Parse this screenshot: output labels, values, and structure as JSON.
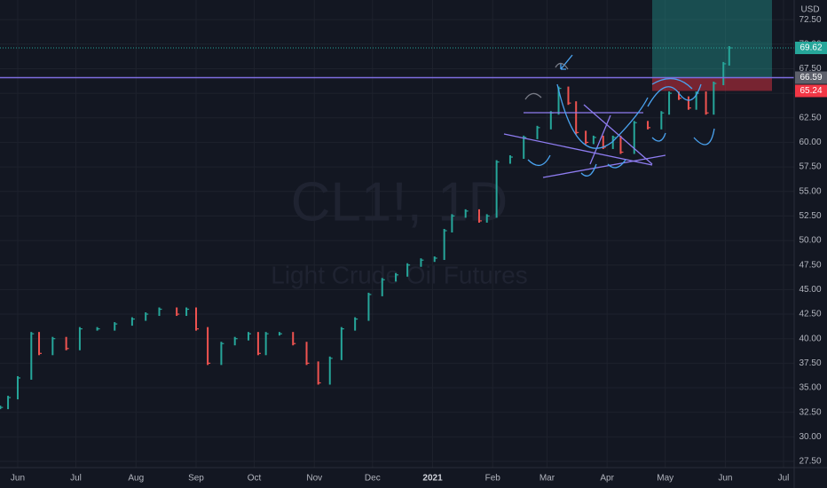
{
  "chart_data": {
    "type": "bar",
    "watermark_symbol": "CL1!, 1D",
    "watermark_name": "Light Crude Oil Futures",
    "currency": "USD",
    "up_color": "#26a69a",
    "down_color": "#ef5350",
    "x": [
      -9,
      -5,
      0,
      7,
      11,
      18,
      25,
      32,
      41,
      50,
      59,
      66,
      73,
      82,
      87,
      92,
      98,
      105,
      112,
      119,
      124,
      128,
      135,
      142,
      149,
      155,
      161,
      167,
      174,
      181,
      188,
      195,
      201,
      208,
      215,
      220,
      224,
      231,
      238,
      242,
      247,
      254,
      261,
      268,
      275,
      279,
      284,
      288,
      293,
      297,
      302,
      307,
      311,
      318,
      325,
      332,
      336,
      341,
      346,
      350,
      355,
      359,
      364,
      367
    ],
    "values": [
      33,
      34,
      36,
      40.5,
      38.5,
      40,
      39,
      41,
      41,
      41.5,
      42,
      42.5,
      43,
      42.5,
      43,
      41,
      37.5,
      39.5,
      40,
      40.5,
      38.5,
      40.5,
      40.5,
      39.5,
      37.5,
      35.5,
      38,
      41,
      42,
      44.5,
      46,
      46.5,
      47.5,
      48,
      48.2,
      51,
      52.5,
      53,
      52,
      52.5,
      58,
      58.5,
      60.5,
      61.5,
      63,
      65.5,
      64,
      61,
      60,
      60.5,
      59.5,
      60.5,
      59,
      62,
      61.5,
      63,
      65,
      64.5,
      63.5,
      65,
      63,
      66,
      68,
      69.62
    ],
    "xlim": [
      -9.15,
      400.5
    ],
    "xticks": [
      {
        "value": 0,
        "label": "Jun"
      },
      {
        "value": 30,
        "label": "Jul"
      },
      {
        "value": 61,
        "label": "Aug"
      },
      {
        "value": 92,
        "label": "Sep"
      },
      {
        "value": 122,
        "label": "Oct"
      },
      {
        "value": 153,
        "label": "Nov"
      },
      {
        "value": 183,
        "label": "Dec"
      },
      {
        "value": 214,
        "label": "2021"
      },
      {
        "value": 245,
        "label": "Feb"
      },
      {
        "value": 273,
        "label": "Mar"
      },
      {
        "value": 304,
        "label": "Apr"
      },
      {
        "value": 334,
        "label": "May"
      },
      {
        "value": 365,
        "label": "Jun"
      },
      {
        "value": 395,
        "label": "Jul"
      }
    ],
    "ylim": [
      27.5,
      74.5
    ],
    "yticks": [
      {
        "value": 27.5,
        "label": "27.50"
      },
      {
        "value": 30,
        "label": "30.00"
      },
      {
        "value": 32.5,
        "label": "32.50"
      },
      {
        "value": 35,
        "label": "35.00"
      },
      {
        "value": 37.5,
        "label": "37.50"
      },
      {
        "value": 40,
        "label": "40.00"
      },
      {
        "value": 42.5,
        "label": "42.50"
      },
      {
        "value": 45,
        "label": "45.00"
      },
      {
        "value": 47.5,
        "label": "47.50"
      },
      {
        "value": 50,
        "label": "50.00"
      },
      {
        "value": 52.5,
        "label": "52.50"
      },
      {
        "value": 55,
        "label": "55.00"
      },
      {
        "value": 57.5,
        "label": "57.50"
      },
      {
        "value": 60,
        "label": "60.00"
      },
      {
        "value": 62.5,
        "label": "62.50"
      },
      {
        "value": 65,
        "label": "65.00"
      },
      {
        "value": 67.5,
        "label": "67.50"
      },
      {
        "value": 70,
        "label": "70.00"
      },
      {
        "value": 72.5,
        "label": "72.50"
      }
    ],
    "grid": true,
    "levels": [
      {
        "value": 69.62,
        "line_color": "#26a69a",
        "badge_color": "#26a69a",
        "style": "dotted"
      },
      {
        "value": 66.59,
        "line_color": "#7e6ee0",
        "badge_color": "#5d606b",
        "style": "solid"
      },
      {
        "value": 65.24,
        "badge_color": "#f23645"
      }
    ]
  }
}
